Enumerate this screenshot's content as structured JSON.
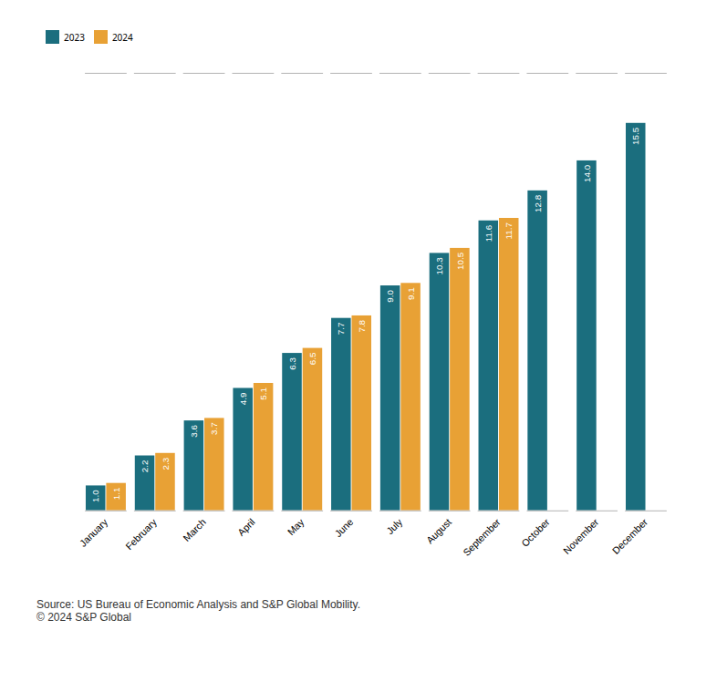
{
  "chart_data": {
    "type": "bar",
    "categories": [
      "January",
      "February",
      "March",
      "April",
      "May",
      "June",
      "July",
      "August",
      "September",
      "October",
      "November",
      "December"
    ],
    "series": [
      {
        "name": "2023",
        "color": "#1b6e7e",
        "values": [
          1.0,
          2.2,
          3.6,
          4.9,
          6.3,
          7.7,
          9.0,
          10.3,
          11.6,
          12.8,
          14.0,
          15.5
        ],
        "value_labels": [
          "1.0",
          "2.2",
          "3.6",
          "4.9",
          "6.3",
          "7.7",
          "9.0",
          "10.3",
          "11.6",
          "12.8",
          "14.0",
          "15.5"
        ]
      },
      {
        "name": "2024",
        "color": "#e8a135",
        "values": [
          1.1,
          2.3,
          3.7,
          5.1,
          6.5,
          7.8,
          9.1,
          10.5,
          11.7,
          null,
          null,
          null
        ],
        "value_labels": [
          "1.1",
          "2.3",
          "3.7",
          "5.1",
          "6.5",
          "7.8",
          "9.1",
          "10.5",
          "11.7",
          null,
          null,
          null
        ]
      }
    ],
    "ylim": [
      0,
      17.5
    ],
    "tick_labels": "x",
    "grid": false,
    "legend": "upper left",
    "data_labels": true,
    "caption": "Source: US Bureau of Economic Analysis and S&P Global Mobility.\n© 2024 S&P Global"
  }
}
